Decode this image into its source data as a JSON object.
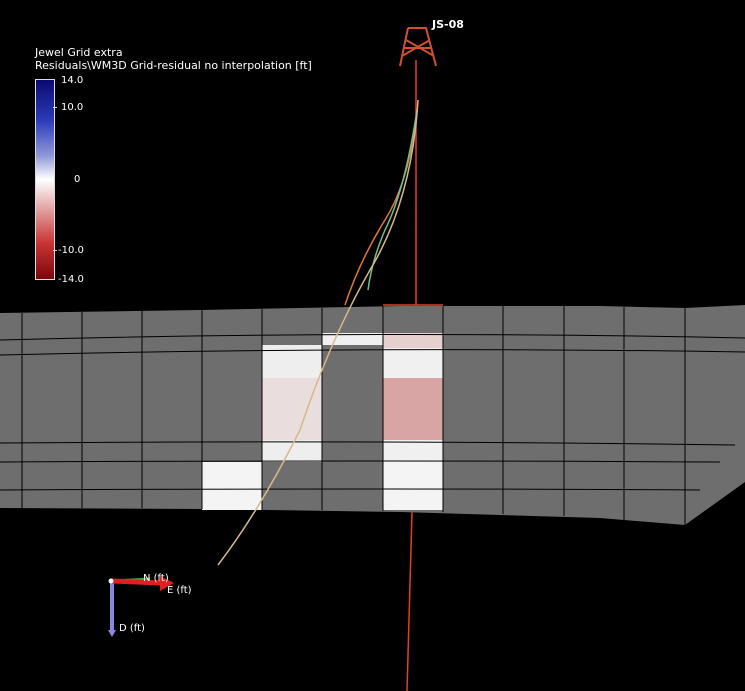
{
  "legend": {
    "title_line1": "Jewel Grid extra",
    "title_line2": "Residuals\\WM3D Grid-residual no interpolation [ft]",
    "ticks": [
      "14.0",
      "10.0",
      "0",
      "-10.0",
      "-14.0"
    ],
    "range": [
      -14.0,
      14.0
    ],
    "colors": {
      "max": "#0a0a6e",
      "zero": "#ffffff",
      "min": "#7a0808"
    }
  },
  "well": {
    "label": "JS-08",
    "trajectory_colors": [
      "#e0402a",
      "#e07830",
      "#6fc08a",
      "#d8b888"
    ]
  },
  "axes": {
    "north": "N (ft)",
    "east": "E (ft)",
    "depth": "D (ft)"
  },
  "grid": {
    "cell_color": "#6e6e6e",
    "line_color": "#000000"
  }
}
